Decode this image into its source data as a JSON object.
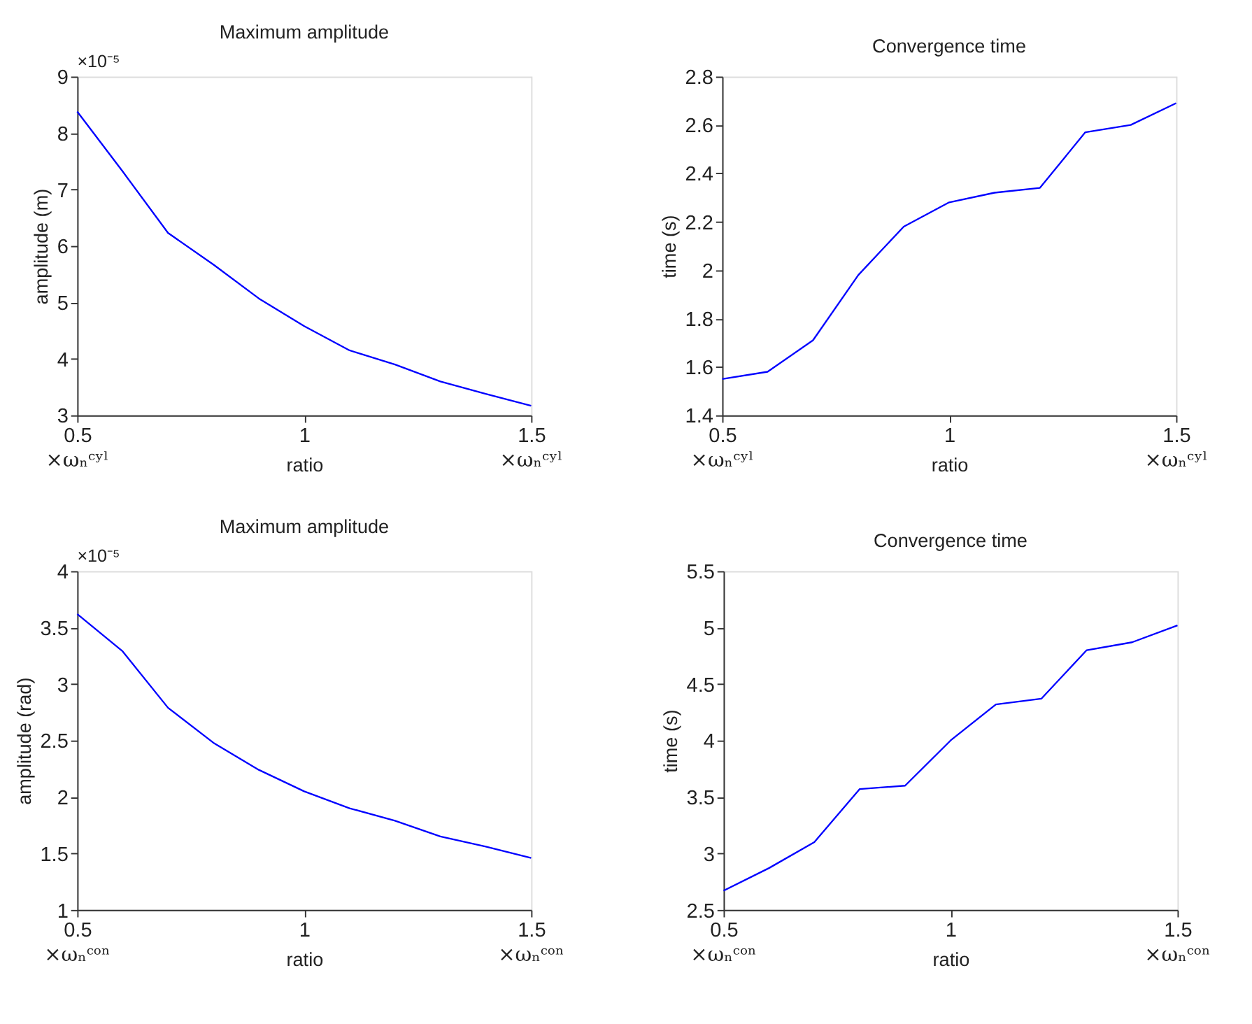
{
  "chart_data": [
    {
      "type": "line",
      "title": "Maximum amplitude",
      "xlabel": "ratio",
      "ylabel": "amplitude (m)",
      "x": [
        0.5,
        0.6,
        0.7,
        0.8,
        0.9,
        1.0,
        1.1,
        1.2,
        1.3,
        1.4,
        1.5
      ],
      "series": [
        {
          "color": "#0000ff",
          "values": [
            8.38,
            7.32,
            6.23,
            5.67,
            5.07,
            4.58,
            4.15,
            3.9,
            3.6,
            3.38,
            3.17
          ]
        }
      ],
      "xlim": [
        0.5,
        1.5
      ],
      "xticks": [
        0.5,
        1,
        1.5
      ],
      "ylim": [
        3,
        9
      ],
      "yticks": [
        3,
        4,
        5,
        6,
        7,
        8,
        9
      ],
      "annotations": [
        "×10⁻⁵",
        "×ωₙᶜʸˡ",
        "×ωₙᶜʸˡ"
      ]
    },
    {
      "type": "line",
      "title": "Convergence time",
      "xlabel": "ratio",
      "ylabel": "time (s)",
      "x": [
        0.5,
        0.6,
        0.7,
        0.8,
        0.9,
        1.0,
        1.1,
        1.2,
        1.3,
        1.4,
        1.5
      ],
      "series": [
        {
          "color": "#0000ff",
          "values": [
            1.55,
            1.58,
            1.71,
            1.98,
            2.18,
            2.28,
            2.32,
            2.34,
            2.57,
            2.6,
            2.69
          ]
        }
      ],
      "xlim": [
        0.5,
        1.5
      ],
      "xticks": [
        0.5,
        1,
        1.5
      ],
      "ylim": [
        1.4,
        2.8
      ],
      "yticks": [
        1.4,
        1.6,
        1.8,
        2,
        2.2,
        2.4,
        2.6,
        2.8
      ],
      "annotations": [
        "×ωₙᶜʸˡ",
        "×ωₙᶜʸˡ"
      ]
    },
    {
      "type": "line",
      "title": "Maximum amplitude",
      "xlabel": "ratio",
      "ylabel": "amplitude (rad)",
      "x": [
        0.5,
        0.6,
        0.7,
        0.8,
        0.9,
        1.0,
        1.1,
        1.2,
        1.3,
        1.4,
        1.5
      ],
      "series": [
        {
          "color": "#0000ff",
          "values": [
            3.62,
            3.29,
            2.79,
            2.48,
            2.24,
            2.05,
            1.9,
            1.79,
            1.65,
            1.56,
            1.46
          ]
        }
      ],
      "xlim": [
        0.5,
        1.5
      ],
      "xticks": [
        0.5,
        1,
        1.5
      ],
      "ylim": [
        1,
        4
      ],
      "yticks": [
        1,
        1.5,
        2,
        2.5,
        3,
        3.5,
        4
      ],
      "annotations": [
        "×10⁻⁵",
        "×ωₙᶜᵒⁿ",
        "×ωₙᶜᵒⁿ"
      ]
    },
    {
      "type": "line",
      "title": "Convergence time",
      "xlabel": "ratio",
      "ylabel": "time (s)",
      "x": [
        0.5,
        0.6,
        0.7,
        0.8,
        0.9,
        1.0,
        1.1,
        1.2,
        1.3,
        1.4,
        1.5
      ],
      "series": [
        {
          "color": "#0000ff",
          "values": [
            2.67,
            2.87,
            3.1,
            3.57,
            3.6,
            4.0,
            4.32,
            4.37,
            4.8,
            4.87,
            5.02
          ]
        }
      ],
      "xlim": [
        0.5,
        1.5
      ],
      "xticks": [
        0.5,
        1,
        1.5
      ],
      "ylim": [
        2.5,
        5.5
      ],
      "yticks": [
        2.5,
        3,
        3.5,
        4,
        4.5,
        5,
        5.5
      ],
      "annotations": [
        "×ωₙᶜᵒⁿ",
        "×ωₙᶜᵒⁿ"
      ]
    }
  ]
}
